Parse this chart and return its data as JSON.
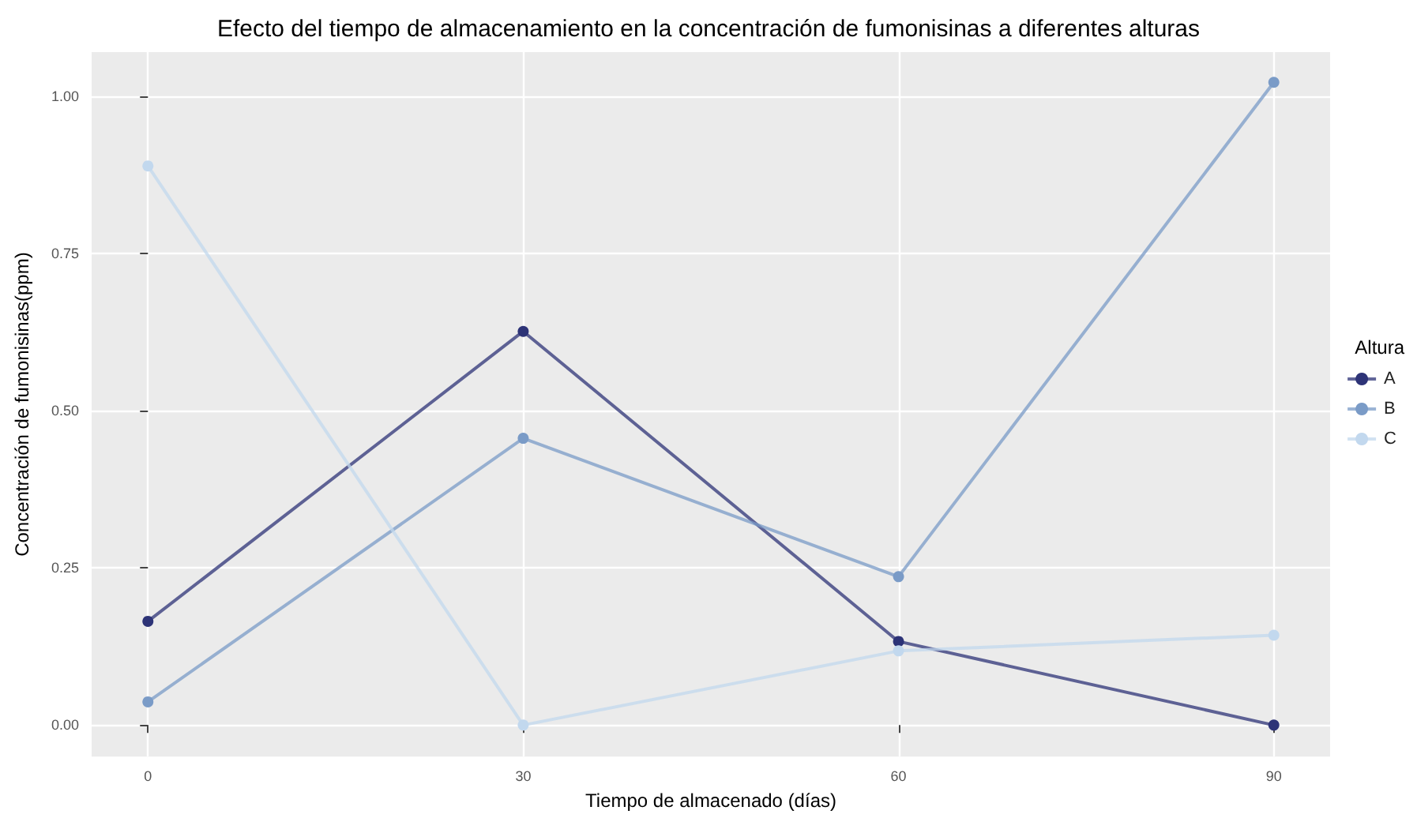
{
  "chart_data": {
    "type": "line",
    "title": "Efecto del tiempo de almacenamiento en la concentración de fumonisinas a diferentes alturas",
    "xlabel": "Tiempo de almacenado (días)",
    "ylabel": "Concentración de fumonisinas(ppm)",
    "legend_title": "Altura",
    "x": [
      0,
      30,
      60,
      90
    ],
    "series": [
      {
        "name": "A",
        "color": "#2d3377",
        "values": [
          0.165,
          0.626,
          0.133,
          0.0
        ]
      },
      {
        "name": "B",
        "color": "#7a9bc7",
        "values": [
          0.037,
          0.456,
          0.236,
          1.022
        ]
      },
      {
        "name": "C",
        "color": "#c2d8ee",
        "values": [
          0.889,
          0.0,
          0.118,
          0.143
        ]
      }
    ],
    "xlim": [
      -4.5,
      94.5
    ],
    "xticks": [
      0,
      30,
      60,
      90
    ],
    "ylim": [
      -0.05,
      1.07
    ],
    "yticks": [
      {
        "value": 0,
        "label": "0.00"
      },
      {
        "value": 0.25,
        "label": "0.25"
      },
      {
        "value": 0.5,
        "label": "0.50"
      },
      {
        "value": 0.75,
        "label": "0.75"
      },
      {
        "value": 1,
        "label": "1.00"
      }
    ],
    "grid": true,
    "legend": "right",
    "marker": "circle",
    "line_style": "solid"
  }
}
